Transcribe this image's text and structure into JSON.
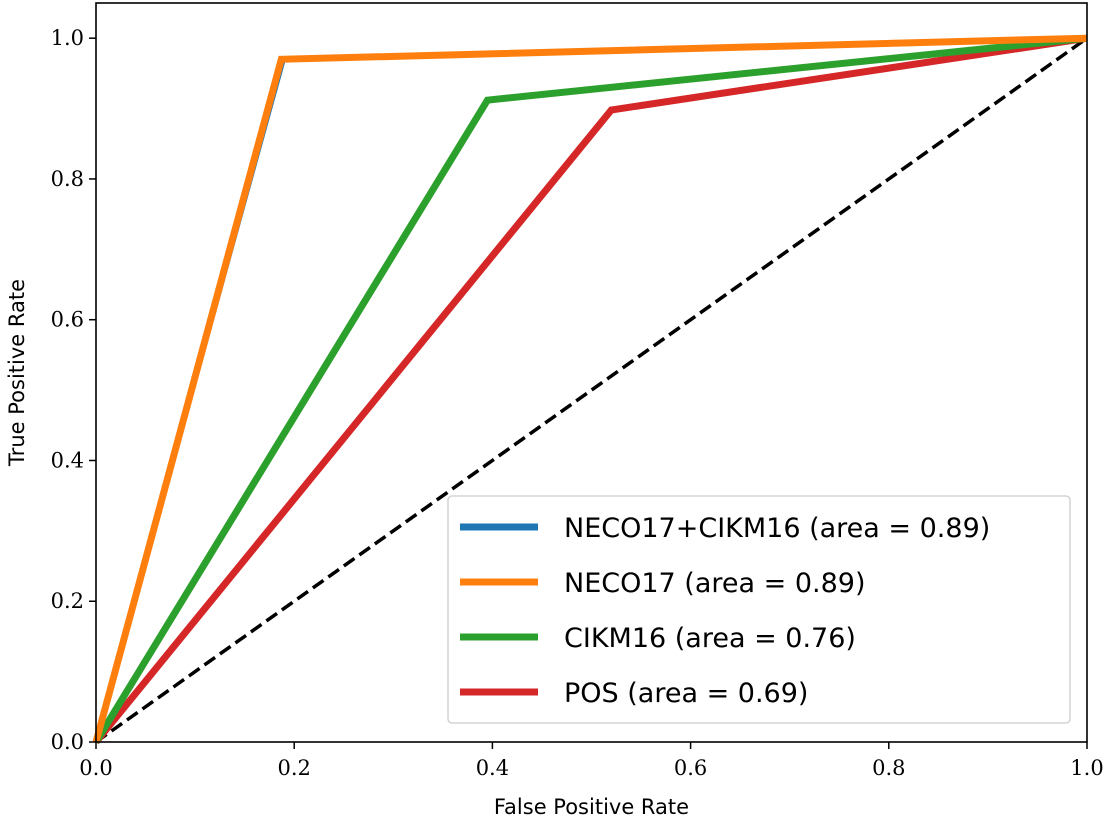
{
  "chart_data": {
    "type": "line",
    "title": "",
    "xlabel": "False Positive Rate",
    "ylabel": "True Positive Rate",
    "xlim": [
      0.0,
      1.0
    ],
    "ylim": [
      0.0,
      1.05
    ],
    "xticks": [
      "0.0",
      "0.2",
      "0.4",
      "0.6",
      "0.8",
      "1.0"
    ],
    "yticks": [
      "0.0",
      "0.2",
      "0.4",
      "0.6",
      "0.8",
      "1.0"
    ],
    "grid": false,
    "legend_position": "lower-right",
    "series": [
      {
        "name": "NECO17+CIKM16 (area = 0.89)",
        "color": "#1f77b4",
        "x": [
          0.0,
          0.19,
          1.0
        ],
        "y": [
          0.0,
          0.97,
          1.0
        ]
      },
      {
        "name": "NECO17 (area = 0.89)",
        "color": "#ff7f0e",
        "x": [
          0.0,
          0.187,
          1.0
        ],
        "y": [
          0.0,
          0.97,
          1.0
        ]
      },
      {
        "name": "CIKM16 (area = 0.76)",
        "color": "#2ca02c",
        "x": [
          0.0,
          0.395,
          1.0
        ],
        "y": [
          0.0,
          0.912,
          1.0
        ]
      },
      {
        "name": "POS (area = 0.69)",
        "color": "#d62728",
        "x": [
          0.0,
          0.52,
          1.0
        ],
        "y": [
          0.0,
          0.898,
          1.0
        ]
      }
    ],
    "reference_line": {
      "x": [
        0.0,
        1.0
      ],
      "y": [
        0.0,
        1.0
      ],
      "color": "#000000",
      "style": "dashed"
    }
  }
}
